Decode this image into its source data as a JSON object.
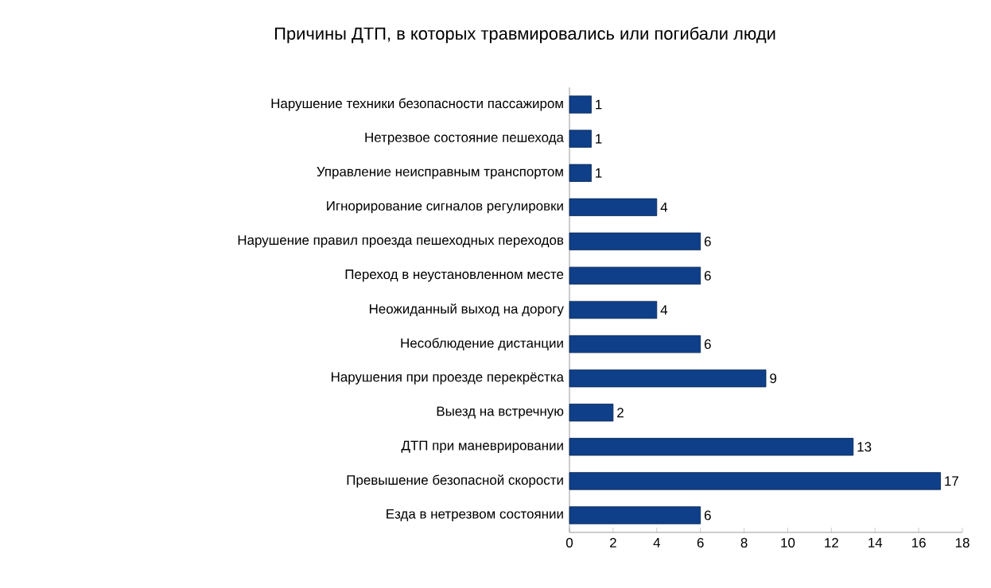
{
  "chart_data": {
    "type": "bar",
    "orientation": "horizontal",
    "title": "Причины ДТП, в которых травмировались или погибали люди",
    "categories": [
      "Нарушение техники безопасности пассажиром",
      "Нетрезвое состояние пешехода",
      "Управление неисправным транспортом",
      "Игнорирование сигналов регулировки",
      "Нарушение правил проезда пешеходных переходов",
      "Переход в неустановленном месте",
      "Неожиданный выход на дорогу",
      "Несоблюдение дистанции",
      "Нарушения при проезде перекрёстка",
      "Выезд на встречную",
      "ДТП при маневрировании",
      "Превышение безопасной скорости",
      "Езда в нетрезвом состоянии"
    ],
    "values": [
      1,
      1,
      1,
      4,
      6,
      6,
      4,
      6,
      9,
      2,
      13,
      17,
      6
    ],
    "color": "#0f3f88",
    "data_labels": true,
    "xlim": [
      0,
      18
    ],
    "xticks": [
      0,
      2,
      4,
      6,
      8,
      10,
      12,
      14,
      16,
      18
    ]
  }
}
